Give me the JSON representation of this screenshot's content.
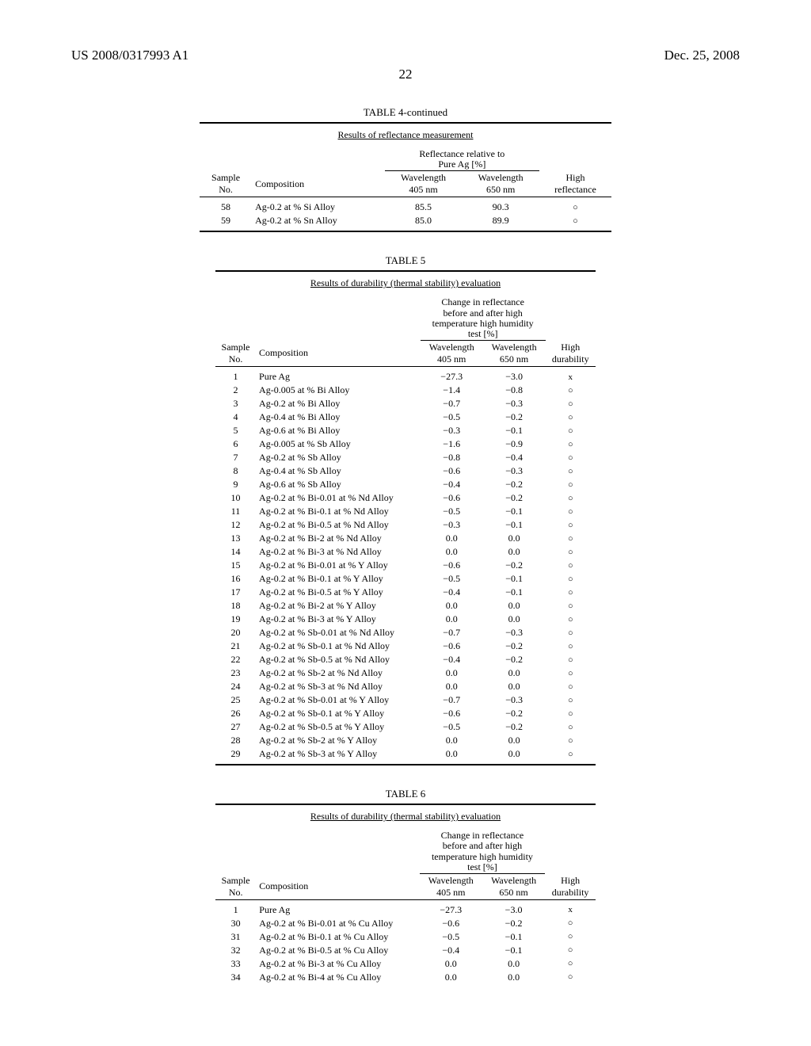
{
  "header": {
    "left": "US 2008/0317993 A1",
    "right": "Dec. 25, 2008",
    "page": "22"
  },
  "table4": {
    "title": "TABLE 4-continued",
    "subtitle": "Results of reflectance measurement",
    "group_label": "Reflectance relative to Pure Ag [%]",
    "cols": {
      "sample": "Sample No.",
      "comp": "Composition",
      "w405": "Wavelength 405 nm",
      "w650": "Wavelength 650 nm",
      "hr": "High reflectance"
    },
    "rows": [
      {
        "no": "58",
        "comp": "Ag-0.2 at % Si Alloy",
        "w405": "85.5",
        "w650": "90.3",
        "hr": "○"
      },
      {
        "no": "59",
        "comp": "Ag-0.2 at % Sn Alloy",
        "w405": "85.0",
        "w650": "89.9",
        "hr": "○"
      }
    ]
  },
  "table5": {
    "title": "TABLE 5",
    "subtitle": "Results of durability (thermal stability) evaluation",
    "group_label": "Change in reflectance before and after high temperature high humidity test [%]",
    "cols": {
      "sample": "Sample No.",
      "comp": "Composition",
      "w405": "Wavelength 405 nm",
      "w650": "Wavelength 650 nm",
      "hd": "High durability"
    },
    "rows": [
      {
        "no": "1",
        "comp": "Pure Ag",
        "w405": "−27.3",
        "w650": "−3.0",
        "hd": "x"
      },
      {
        "no": "2",
        "comp": "Ag-0.005 at % Bi Alloy",
        "w405": "−1.4",
        "w650": "−0.8",
        "hd": "○"
      },
      {
        "no": "3",
        "comp": "Ag-0.2 at % Bi Alloy",
        "w405": "−0.7",
        "w650": "−0.3",
        "hd": "○"
      },
      {
        "no": "4",
        "comp": "Ag-0.4 at % Bi Alloy",
        "w405": "−0.5",
        "w650": "−0.2",
        "hd": "○"
      },
      {
        "no": "5",
        "comp": "Ag-0.6 at % Bi Alloy",
        "w405": "−0.3",
        "w650": "−0.1",
        "hd": "○"
      },
      {
        "no": "6",
        "comp": "Ag-0.005 at % Sb Alloy",
        "w405": "−1.6",
        "w650": "−0.9",
        "hd": "○"
      },
      {
        "no": "7",
        "comp": "Ag-0.2 at % Sb Alloy",
        "w405": "−0.8",
        "w650": "−0.4",
        "hd": "○"
      },
      {
        "no": "8",
        "comp": "Ag-0.4 at % Sb Alloy",
        "w405": "−0.6",
        "w650": "−0.3",
        "hd": "○"
      },
      {
        "no": "9",
        "comp": "Ag-0.6 at % Sb Alloy",
        "w405": "−0.4",
        "w650": "−0.2",
        "hd": "○"
      },
      {
        "no": "10",
        "comp": "Ag-0.2 at % Bi-0.01 at % Nd Alloy",
        "w405": "−0.6",
        "w650": "−0.2",
        "hd": "○"
      },
      {
        "no": "11",
        "comp": "Ag-0.2 at % Bi-0.1 at % Nd Alloy",
        "w405": "−0.5",
        "w650": "−0.1",
        "hd": "○"
      },
      {
        "no": "12",
        "comp": "Ag-0.2 at % Bi-0.5 at % Nd Alloy",
        "w405": "−0.3",
        "w650": "−0.1",
        "hd": "○"
      },
      {
        "no": "13",
        "comp": "Ag-0.2 at % Bi-2 at % Nd Alloy",
        "w405": "0.0",
        "w650": "0.0",
        "hd": "○"
      },
      {
        "no": "14",
        "comp": "Ag-0.2 at % Bi-3 at % Nd Alloy",
        "w405": "0.0",
        "w650": "0.0",
        "hd": "○"
      },
      {
        "no": "15",
        "comp": "Ag-0.2 at % Bi-0.01 at % Y Alloy",
        "w405": "−0.6",
        "w650": "−0.2",
        "hd": "○"
      },
      {
        "no": "16",
        "comp": "Ag-0.2 at % Bi-0.1 at % Y Alloy",
        "w405": "−0.5",
        "w650": "−0.1",
        "hd": "○"
      },
      {
        "no": "17",
        "comp": "Ag-0.2 at % Bi-0.5 at % Y Alloy",
        "w405": "−0.4",
        "w650": "−0.1",
        "hd": "○"
      },
      {
        "no": "18",
        "comp": "Ag-0.2 at % Bi-2 at % Y Alloy",
        "w405": "0.0",
        "w650": "0.0",
        "hd": "○"
      },
      {
        "no": "19",
        "comp": "Ag-0.2 at % Bi-3 at % Y Alloy",
        "w405": "0.0",
        "w650": "0.0",
        "hd": "○"
      },
      {
        "no": "20",
        "comp": "Ag-0.2 at % Sb-0.01 at % Nd Alloy",
        "w405": "−0.7",
        "w650": "−0.3",
        "hd": "○"
      },
      {
        "no": "21",
        "comp": "Ag-0.2 at % Sb-0.1 at % Nd Alloy",
        "w405": "−0.6",
        "w650": "−0.2",
        "hd": "○"
      },
      {
        "no": "22",
        "comp": "Ag-0.2 at % Sb-0.5 at % Nd Alloy",
        "w405": "−0.4",
        "w650": "−0.2",
        "hd": "○"
      },
      {
        "no": "23",
        "comp": "Ag-0.2 at % Sb-2 at % Nd Alloy",
        "w405": "0.0",
        "w650": "0.0",
        "hd": "○"
      },
      {
        "no": "24",
        "comp": "Ag-0.2 at % Sb-3 at % Nd Alloy",
        "w405": "0.0",
        "w650": "0.0",
        "hd": "○"
      },
      {
        "no": "25",
        "comp": "Ag-0.2 at % Sb-0.01 at % Y Alloy",
        "w405": "−0.7",
        "w650": "−0.3",
        "hd": "○"
      },
      {
        "no": "26",
        "comp": "Ag-0.2 at % Sb-0.1 at % Y Alloy",
        "w405": "−0.6",
        "w650": "−0.2",
        "hd": "○"
      },
      {
        "no": "27",
        "comp": "Ag-0.2 at % Sb-0.5 at % Y Alloy",
        "w405": "−0.5",
        "w650": "−0.2",
        "hd": "○"
      },
      {
        "no": "28",
        "comp": "Ag-0.2 at % Sb-2 at % Y Alloy",
        "w405": "0.0",
        "w650": "0.0",
        "hd": "○"
      },
      {
        "no": "29",
        "comp": "Ag-0.2 at % Sb-3 at % Y Alloy",
        "w405": "0.0",
        "w650": "0.0",
        "hd": "○"
      }
    ]
  },
  "table6": {
    "title": "TABLE 6",
    "subtitle": "Results of durability (thermal stability) evaluation",
    "group_label": "Change in reflectance before and after high temperature high humidity test [%]",
    "cols": {
      "sample": "Sample No.",
      "comp": "Composition",
      "w405": "Wavelength 405 nm",
      "w650": "Wavelength 650 nm",
      "hd": "High durability"
    },
    "rows": [
      {
        "no": "1",
        "comp": "Pure Ag",
        "w405": "−27.3",
        "w650": "−3.0",
        "hd": "x"
      },
      {
        "no": "30",
        "comp": "Ag-0.2 at % Bi-0.01 at % Cu Alloy",
        "w405": "−0.6",
        "w650": "−0.2",
        "hd": "○"
      },
      {
        "no": "31",
        "comp": "Ag-0.2 at % Bi-0.1 at % Cu Alloy",
        "w405": "−0.5",
        "w650": "−0.1",
        "hd": "○"
      },
      {
        "no": "32",
        "comp": "Ag-0.2 at % Bi-0.5 at % Cu Alloy",
        "w405": "−0.4",
        "w650": "−0.1",
        "hd": "○"
      },
      {
        "no": "33",
        "comp": "Ag-0.2 at % Bi-3 at % Cu Alloy",
        "w405": "0.0",
        "w650": "0.0",
        "hd": "○"
      },
      {
        "no": "34",
        "comp": "Ag-0.2 at % Bi-4 at % Cu Alloy",
        "w405": "0.0",
        "w650": "0.0",
        "hd": "○"
      }
    ]
  }
}
